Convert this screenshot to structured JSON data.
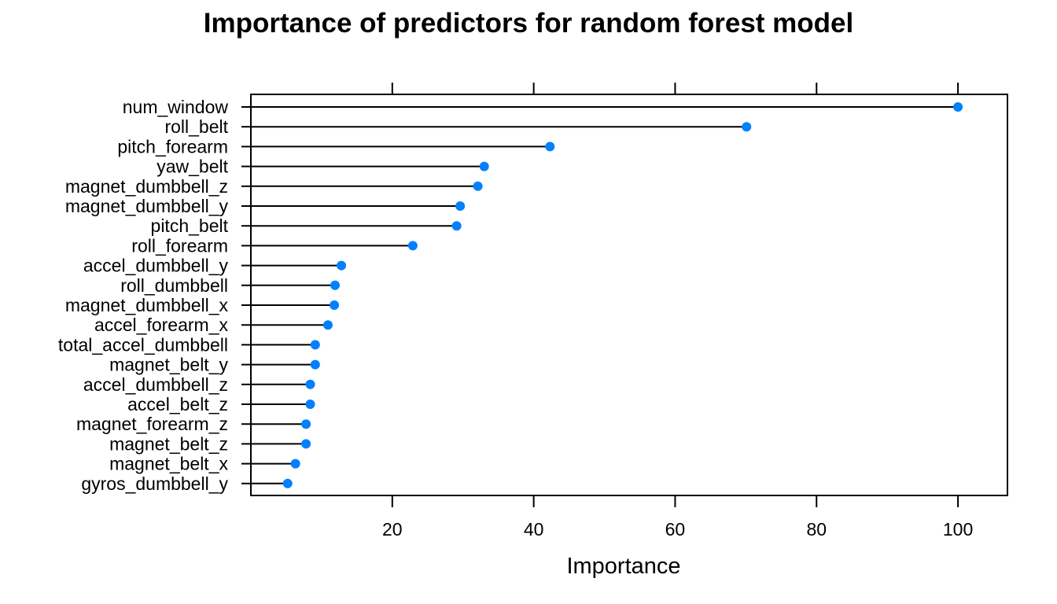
{
  "chart_data": {
    "type": "dot",
    "title": "Importance of predictors for random forest model",
    "xlabel": "Importance",
    "ylabel": "",
    "xlim": [
      0,
      107
    ],
    "x_ticks": [
      20,
      40,
      60,
      80,
      100
    ],
    "grid": false,
    "point_color": "#0080FF",
    "line_color": "#000000",
    "categories": [
      "num_window",
      "roll_belt",
      "pitch_forearm",
      "yaw_belt",
      "magnet_dumbbell_z",
      "magnet_dumbbell_y",
      "pitch_belt",
      "roll_forearm",
      "accel_dumbbell_y",
      "roll_dumbbell",
      "magnet_dumbbell_x",
      "accel_forearm_x",
      "total_accel_dumbbell",
      "magnet_belt_y",
      "accel_dumbbell_z",
      "accel_belt_z",
      "magnet_forearm_z",
      "magnet_belt_z",
      "magnet_belt_x",
      "gyros_dumbbell_y"
    ],
    "values": [
      100,
      70.1,
      42.3,
      33.0,
      32.1,
      29.6,
      29.1,
      22.9,
      12.8,
      11.9,
      11.8,
      10.9,
      9.1,
      9.1,
      8.4,
      8.4,
      7.8,
      7.8,
      6.3,
      5.2
    ]
  }
}
